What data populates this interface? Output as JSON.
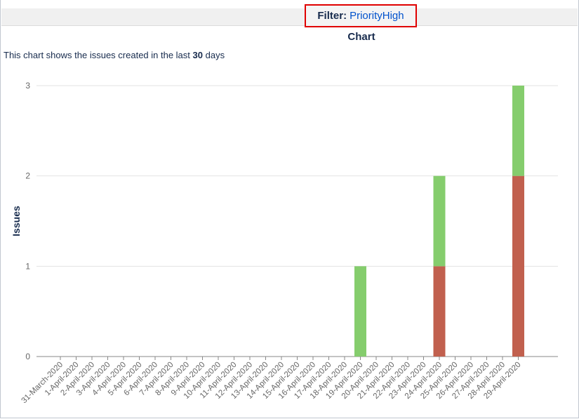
{
  "filter": {
    "prefix": "Filter:",
    "value": "PriorityHigh"
  },
  "heading": "Chart",
  "description": {
    "before": "This chart shows the issues created in the last",
    "days": "30",
    "after": "days"
  },
  "colors": {
    "created": "#c1604e",
    "green": "#85cd6d"
  },
  "chart_data": {
    "type": "bar",
    "stacked": true,
    "title": "",
    "xlabel": "",
    "ylabel": "Issues",
    "ylim": [
      0,
      3
    ],
    "yticks": [
      0,
      1,
      2,
      3
    ],
    "grid": true,
    "categories": [
      "31-March-2020",
      "1-April-2020",
      "2-April-2020",
      "3-April-2020",
      "4-April-2020",
      "5-April-2020",
      "6-April-2020",
      "7-April-2020",
      "8-April-2020",
      "9-April-2020",
      "10-April-2020",
      "11-April-2020",
      "12-April-2020",
      "13-April-2020",
      "14-April-2020",
      "15-April-2020",
      "16-April-2020",
      "17-April-2020",
      "18-April-2020",
      "19-April-2020",
      "20-April-2020",
      "21-April-2020",
      "22-April-2020",
      "23-April-2020",
      "24-April-2020",
      "25-April-2020",
      "26-April-2020",
      "27-April-2020",
      "28-April-2020",
      "29-April-2020"
    ],
    "series": [
      {
        "color": "#c1604e",
        "values": [
          0,
          0,
          0,
          0,
          0,
          0,
          0,
          0,
          0,
          0,
          0,
          0,
          0,
          0,
          0,
          0,
          0,
          0,
          0,
          0,
          0,
          0,
          0,
          0,
          1,
          0,
          0,
          0,
          0,
          2
        ]
      },
      {
        "color": "#85cd6d",
        "values": [
          0,
          0,
          0,
          0,
          0,
          0,
          0,
          0,
          0,
          0,
          0,
          0,
          0,
          0,
          0,
          0,
          0,
          0,
          0,
          1,
          0,
          0,
          0,
          0,
          1,
          0,
          0,
          0,
          0,
          1
        ]
      }
    ]
  }
}
